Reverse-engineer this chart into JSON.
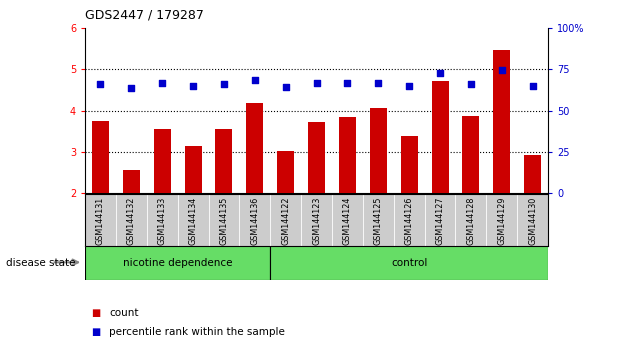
{
  "title": "GDS2447 / 179287",
  "samples": [
    "GSM144131",
    "GSM144132",
    "GSM144133",
    "GSM144134",
    "GSM144135",
    "GSM144136",
    "GSM144122",
    "GSM144123",
    "GSM144124",
    "GSM144125",
    "GSM144126",
    "GSM144127",
    "GSM144128",
    "GSM144129",
    "GSM144130"
  ],
  "bar_values": [
    3.75,
    2.55,
    3.55,
    3.15,
    3.55,
    4.18,
    3.03,
    3.73,
    3.85,
    4.07,
    3.38,
    4.72,
    3.88,
    5.48,
    2.92
  ],
  "dot_values": [
    4.65,
    4.55,
    4.68,
    4.6,
    4.65,
    4.75,
    4.58,
    4.68,
    4.68,
    4.68,
    4.6,
    4.92,
    4.65,
    4.98,
    4.6
  ],
  "bar_color": "#cc0000",
  "dot_color": "#0000cc",
  "ylim_left": [
    2,
    6
  ],
  "ylim_right": [
    0,
    100
  ],
  "yticks_left": [
    2,
    3,
    4,
    5,
    6
  ],
  "yticks_right": [
    0,
    25,
    50,
    75,
    100
  ],
  "label_bg_color": "#cccccc",
  "green_color": "#66dd66",
  "nicotine_label": "nicotine dependence",
  "control_label": "control",
  "disease_state_label": "disease state",
  "legend_count": "count",
  "legend_percentile": "percentile rank within the sample",
  "nicotine_count": 6,
  "total_count": 15,
  "title_text": "GDS2447 / 179287"
}
